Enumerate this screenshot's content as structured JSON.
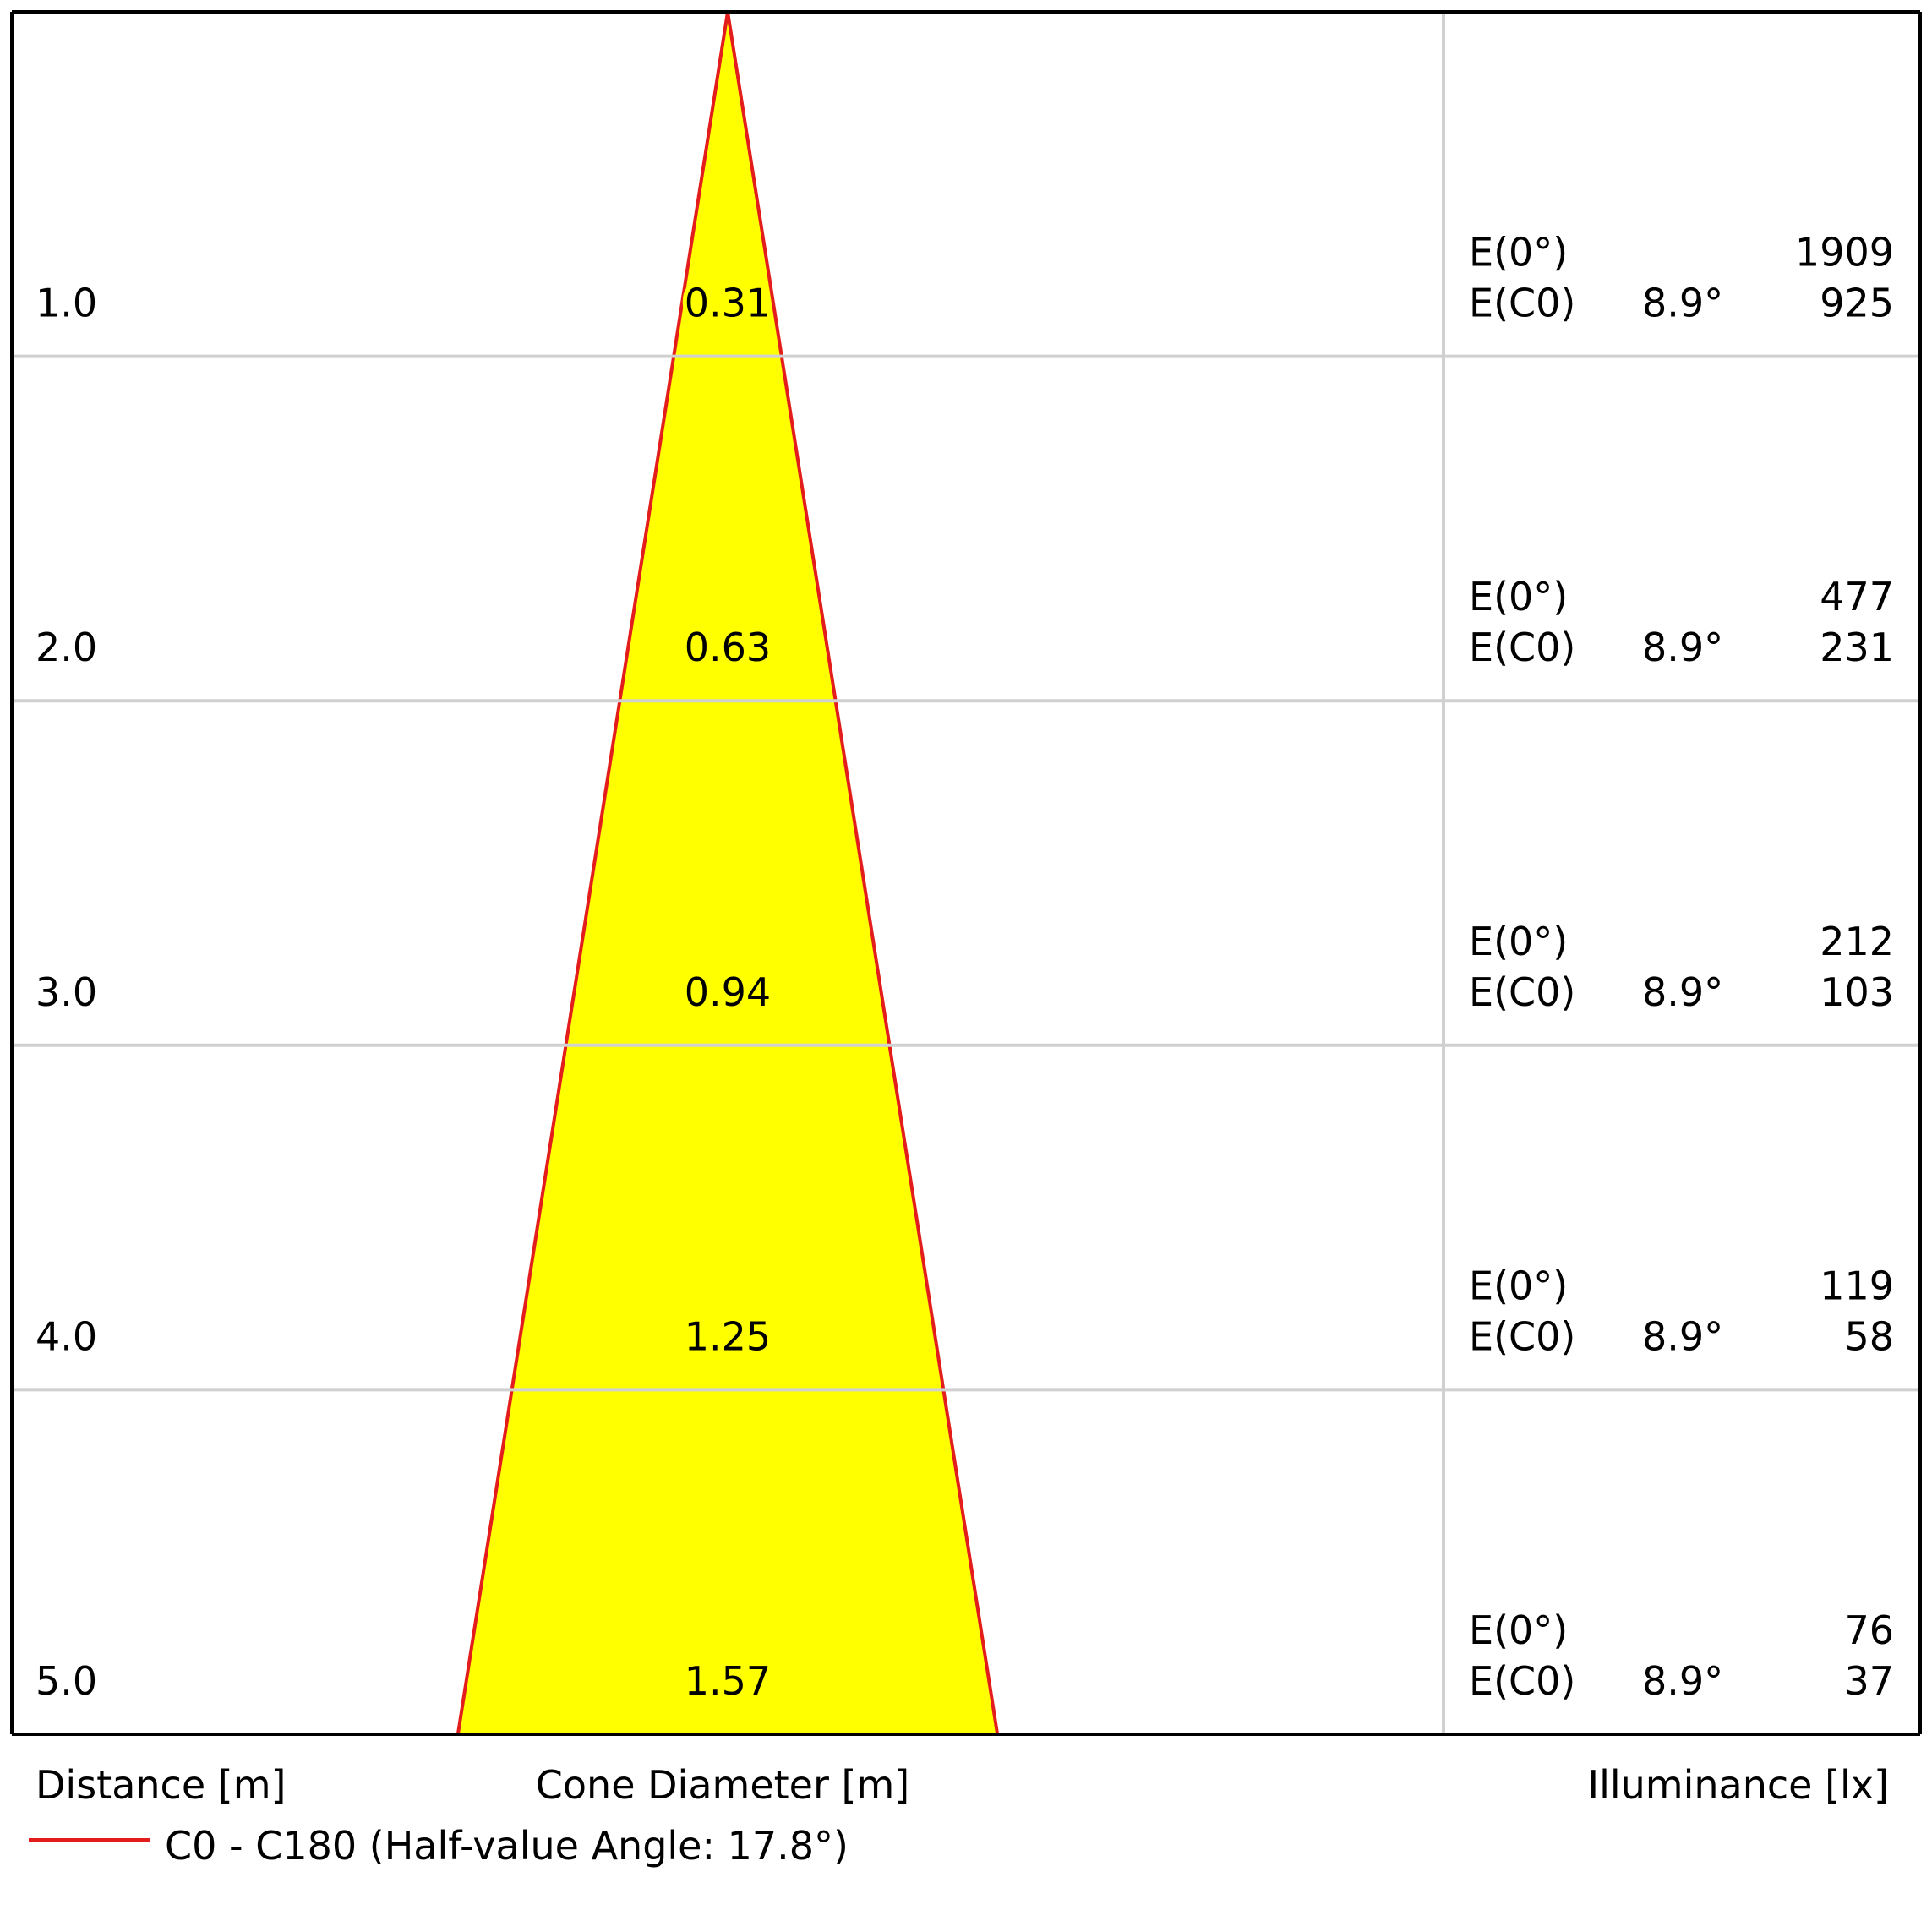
{
  "chart_data": {
    "type": "area",
    "half_value_angle_deg": 17.8,
    "colors": {
      "cone_fill": "#FFFF00",
      "cone_outline": "#E31C1C",
      "grid": "#D0D0D0",
      "frame": "#000000"
    },
    "rows": [
      {
        "distance": "1.0",
        "diameter": "0.31",
        "e0_label": "E(0°)",
        "e0_value": "1909",
        "ec0_label": "E(C0)",
        "ec0_angle": "8.9°",
        "ec0_value": "925"
      },
      {
        "distance": "2.0",
        "diameter": "0.63",
        "e0_label": "E(0°)",
        "e0_value": "477",
        "ec0_label": "E(C0)",
        "ec0_angle": "8.9°",
        "ec0_value": "231"
      },
      {
        "distance": "3.0",
        "diameter": "0.94",
        "e0_label": "E(0°)",
        "e0_value": "212",
        "ec0_label": "E(C0)",
        "ec0_angle": "8.9°",
        "ec0_value": "103"
      },
      {
        "distance": "4.0",
        "diameter": "1.25",
        "e0_label": "E(0°)",
        "e0_value": "119",
        "ec0_label": "E(C0)",
        "ec0_angle": "8.9°",
        "ec0_value": "58"
      },
      {
        "distance": "5.0",
        "diameter": "1.57",
        "e0_label": "E(0°)",
        "e0_value": "76",
        "ec0_label": "E(C0)",
        "ec0_angle": "8.9°",
        "ec0_value": "37"
      }
    ],
    "labels": {
      "distance_axis": "Distance [m]",
      "diameter_axis": "Cone Diameter [m]",
      "illuminance_axis": "Illuminance [lx]"
    },
    "legend": {
      "label": "C0 - C180 (Half-value Angle: 17.8°)",
      "placement": "bottom-left"
    }
  }
}
